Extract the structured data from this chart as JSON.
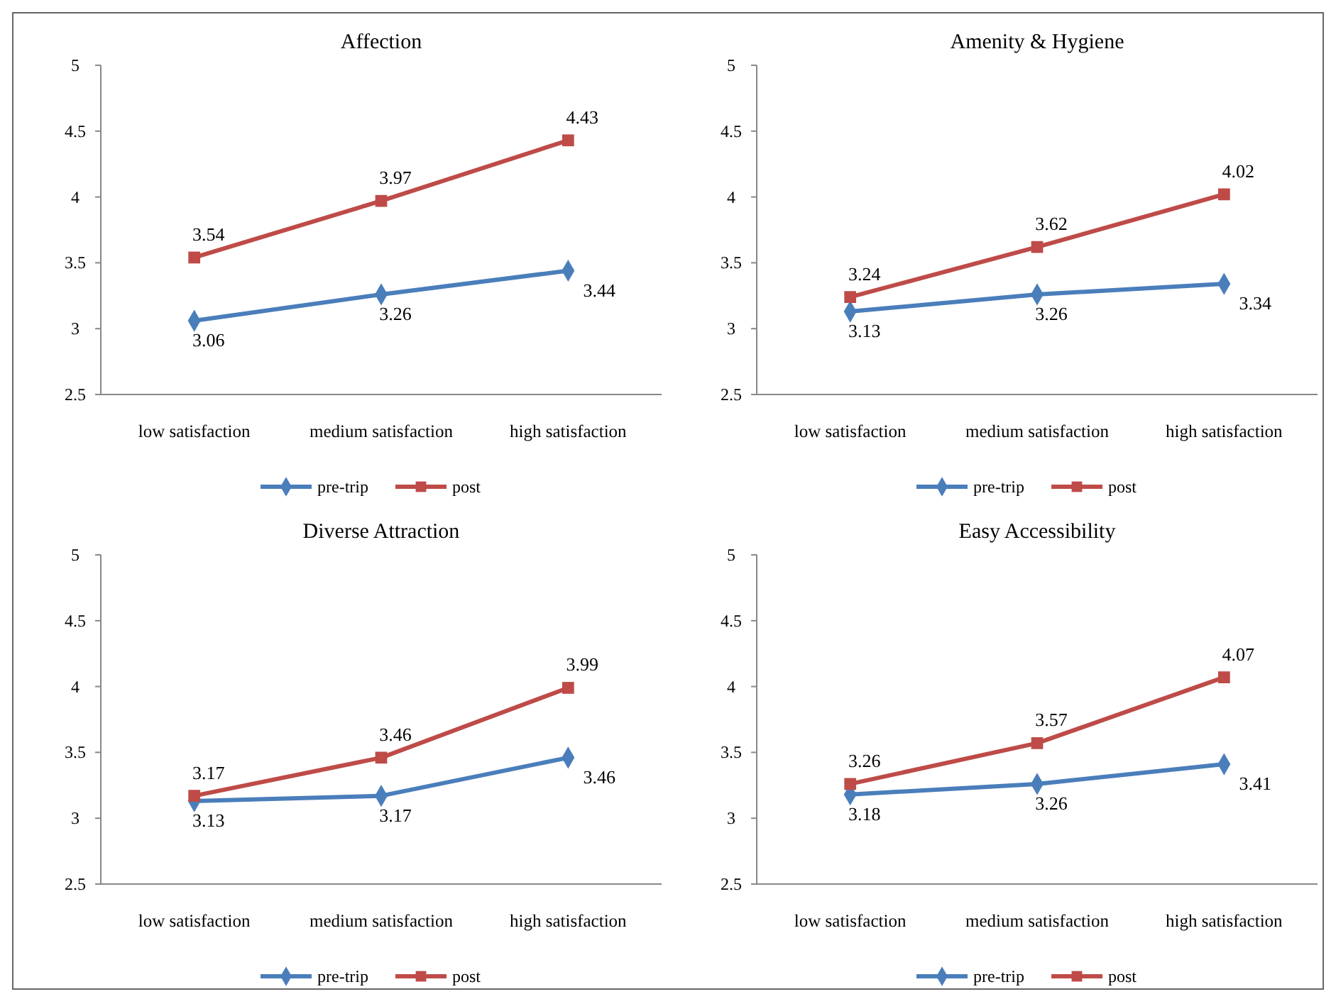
{
  "chart_data": [
    {
      "type": "line",
      "title": "Affection",
      "categories": [
        "low satisfaction",
        "medium satisfaction",
        "high satisfaction"
      ],
      "ylim": [
        2.5,
        5
      ],
      "yticks": [
        2.5,
        3,
        3.5,
        4,
        4.5,
        5
      ],
      "grid": false,
      "legend": "bottom",
      "data_labels": true,
      "series": [
        {
          "name": "pre-trip",
          "color": "#4a7ebb",
          "marker": "diamond",
          "values": [
            3.06,
            3.26,
            3.44
          ]
        },
        {
          "name": "post",
          "color": "#be4b48",
          "marker": "square",
          "values": [
            3.54,
            3.97,
            4.43
          ]
        }
      ]
    },
    {
      "type": "line",
      "title": "Amenity & Hygiene",
      "categories": [
        "low satisfaction",
        "medium satisfaction",
        "high satisfaction"
      ],
      "ylim": [
        2.5,
        5
      ],
      "yticks": [
        2.5,
        3,
        3.5,
        4,
        4.5,
        5
      ],
      "grid": false,
      "legend": "bottom",
      "data_labels": true,
      "series": [
        {
          "name": "pre-trip",
          "color": "#4a7ebb",
          "marker": "diamond",
          "values": [
            3.13,
            3.26,
            3.34
          ]
        },
        {
          "name": "post",
          "color": "#be4b48",
          "marker": "square",
          "values": [
            3.24,
            3.62,
            4.02
          ]
        }
      ]
    },
    {
      "type": "line",
      "title": "Diverse Attraction",
      "categories": [
        "low satisfaction",
        "medium satisfaction",
        "high satisfaction"
      ],
      "ylim": [
        2.5,
        5
      ],
      "yticks": [
        2.5,
        3,
        3.5,
        4,
        4.5,
        5
      ],
      "grid": false,
      "legend": "bottom",
      "data_labels": true,
      "series": [
        {
          "name": "pre-trip",
          "color": "#4a7ebb",
          "marker": "diamond",
          "values": [
            3.13,
            3.17,
            3.46
          ]
        },
        {
          "name": "post",
          "color": "#be4b48",
          "marker": "square",
          "values": [
            3.17,
            3.46,
            3.99
          ]
        }
      ]
    },
    {
      "type": "line",
      "title": "Easy Accessibility",
      "categories": [
        "low satisfaction",
        "medium satisfaction",
        "high satisfaction"
      ],
      "ylim": [
        2.5,
        5
      ],
      "yticks": [
        2.5,
        3,
        3.5,
        4,
        4.5,
        5
      ],
      "grid": false,
      "legend": "bottom",
      "data_labels": true,
      "series": [
        {
          "name": "pre-trip",
          "color": "#4a7ebb",
          "marker": "diamond",
          "values": [
            3.18,
            3.26,
            3.41
          ]
        },
        {
          "name": "post",
          "color": "#be4b48",
          "marker": "square",
          "values": [
            3.26,
            3.57,
            4.07
          ]
        }
      ]
    }
  ]
}
